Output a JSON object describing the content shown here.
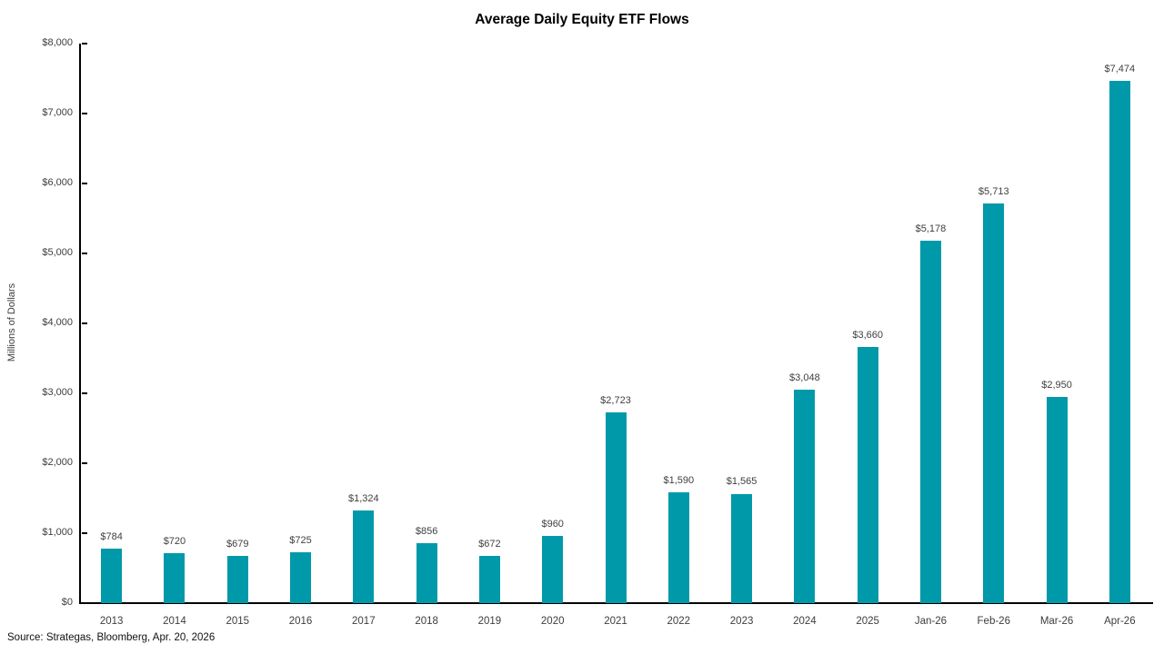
{
  "chart_data": {
    "type": "bar",
    "title": "Average Daily Equity ETF Flows",
    "xlabel": "",
    "ylabel": "Millions of Dollars",
    "categories": [
      "2013",
      "2014",
      "2015",
      "2016",
      "2017",
      "2018",
      "2019",
      "2020",
      "2021",
      "2022",
      "2023",
      "2024",
      "2025",
      "Jan-26",
      "Feb-26",
      "Mar-26",
      "Apr-26"
    ],
    "values": [
      784,
      720,
      679,
      725,
      1324,
      856,
      672,
      960,
      2723,
      1590,
      1565,
      3048,
      3660,
      5178,
      5713,
      2950,
      7474
    ],
    "value_labels": [
      "$784",
      "$720",
      "$679",
      "$725",
      "$1,324",
      "$856",
      "$672",
      "$960",
      "$2,723",
      "$1,590",
      "$1,565",
      "$3,048",
      "$3,660",
      "$5,178",
      "$5,713",
      "$2,950",
      "$7,474"
    ],
    "ylim": [
      0,
      8000
    ],
    "y_tick_interval": 1000,
    "y_tick_labels": [
      "$0",
      "$1,000",
      "$2,000",
      "$3,000",
      "$4,000",
      "$5,000",
      "$6,000",
      "$7,000",
      "$8,000"
    ],
    "grid": false,
    "legend": "none",
    "bar_color": "#0099a9",
    "axis_color": "#000000",
    "label_color": "#404040",
    "source": "Source: Strategas, Bloomberg, Apr. 20, 2026"
  }
}
